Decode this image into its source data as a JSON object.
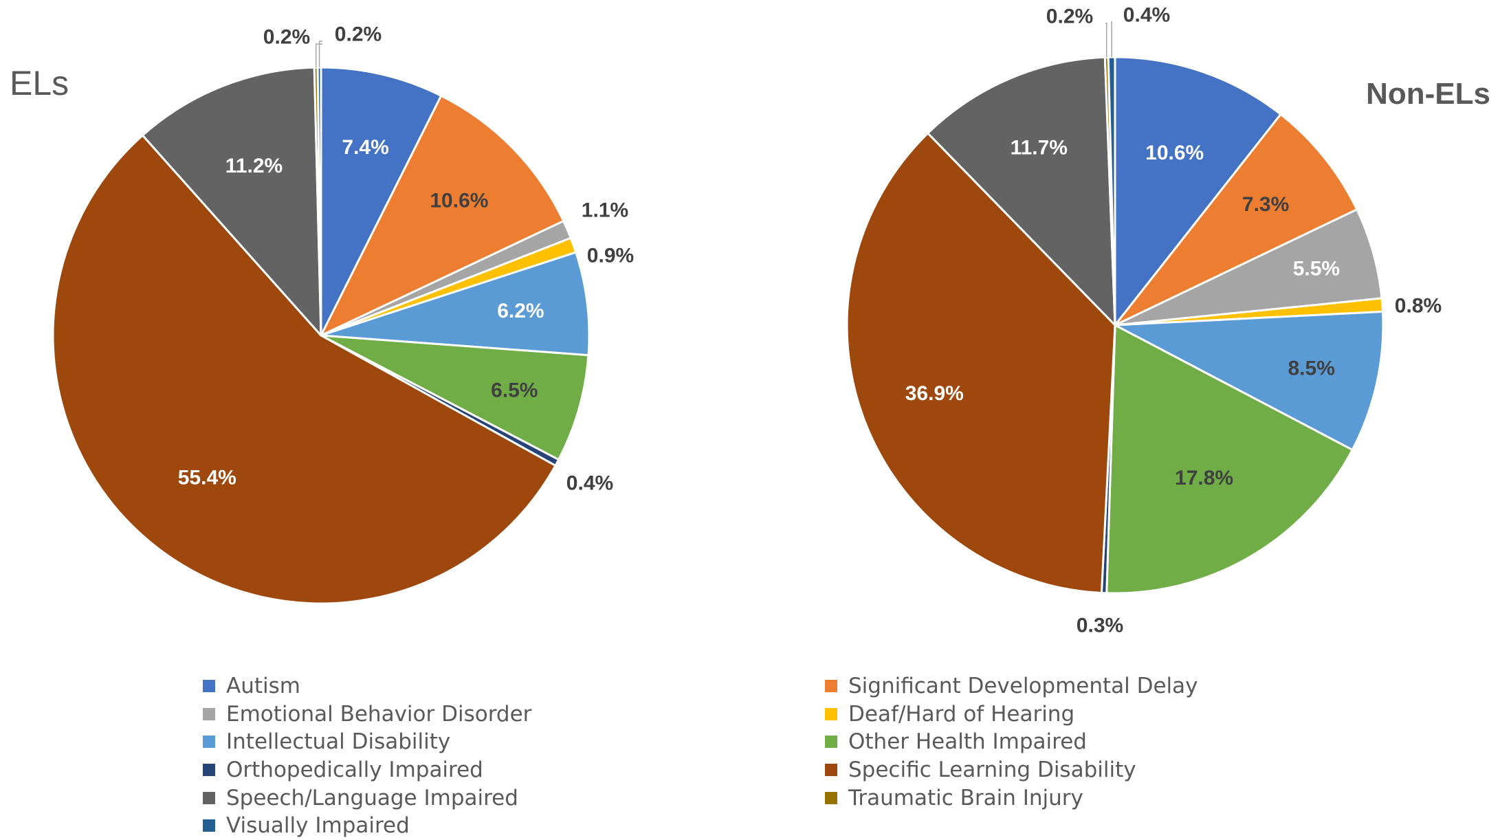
{
  "chart_data": [
    {
      "type": "pie",
      "title": "ELs",
      "slices": [
        {
          "label": "Autism",
          "value": 7.4,
          "text": "7.4%"
        },
        {
          "label": "Significant Developmental Delay",
          "value": 10.6,
          "text": "10.6%"
        },
        {
          "label": "Emotional Behavior Disorder",
          "value": 1.1,
          "text": "1.1%"
        },
        {
          "label": "Deaf/Hard of Hearing",
          "value": 0.9,
          "text": "0.9%"
        },
        {
          "label": "Intellectual Disability",
          "value": 6.2,
          "text": "6.2%"
        },
        {
          "label": "Other Health Impaired",
          "value": 6.5,
          "text": "6.5%"
        },
        {
          "label": "Orthopedically Impaired",
          "value": 0.4,
          "text": "0.4%"
        },
        {
          "label": "Specific Learning Disability",
          "value": 55.4,
          "text": "55.4%"
        },
        {
          "label": "Speech/Language Impaired",
          "value": 11.2,
          "text": "11.2%"
        },
        {
          "label": "Traumatic Brain Injury",
          "value": 0.2,
          "text": "0.2%"
        },
        {
          "label": "Visually Impaired",
          "value": 0.2,
          "text": "0.2%"
        }
      ]
    },
    {
      "type": "pie",
      "title": "Non-ELs",
      "slices": [
        {
          "label": "Autism",
          "value": 10.6,
          "text": "10.6%"
        },
        {
          "label": "Significant Developmental Delay",
          "value": 7.3,
          "text": "7.3%"
        },
        {
          "label": "Emotional Behavior Disorder",
          "value": 5.5,
          "text": "5.5%"
        },
        {
          "label": "Deaf/Hard of Hearing",
          "value": 0.8,
          "text": "0.8%"
        },
        {
          "label": "Intellectual Disability",
          "value": 8.5,
          "text": "8.5%"
        },
        {
          "label": "Other Health Impaired",
          "value": 17.8,
          "text": "17.8%"
        },
        {
          "label": "Orthopedically Impaired",
          "value": 0.3,
          "text": "0.3%"
        },
        {
          "label": "Specific Learning Disability",
          "value": 36.9,
          "text": "36.9%"
        },
        {
          "label": "Speech/Language Impaired",
          "value": 11.7,
          "text": "11.7%"
        },
        {
          "label": "Traumatic Brain Injury",
          "value": 0.2,
          "text": "0.2%"
        },
        {
          "label": "Visually Impaired",
          "value": 0.4,
          "text": "0.4%"
        }
      ]
    }
  ],
  "colors": {
    "Autism": "#4472C4",
    "Significant Developmental Delay": "#ED7D31",
    "Emotional Behavior Disorder": "#A5A5A5",
    "Deaf/Hard of Hearing": "#FFC000",
    "Intellectual Disability": "#5B9BD5",
    "Other Health Impaired": "#70AD47",
    "Orthopedically Impaired": "#264478",
    "Specific Learning Disability": "#9E480E",
    "Speech/Language Impaired": "#636363",
    "Traumatic Brain Injury": "#997300",
    "Visually Impaired": "#255E91"
  },
  "legend": [
    "Autism",
    "Significant Developmental Delay",
    "Emotional Behavior Disorder",
    "Deaf/Hard of Hearing",
    "Intellectual Disability",
    "Other Health Impaired",
    "Orthopedically Impaired",
    "Specific Learning Disability",
    "Speech/Language Impaired",
    "Traumatic Brain Injury",
    "Visually Impaired"
  ]
}
